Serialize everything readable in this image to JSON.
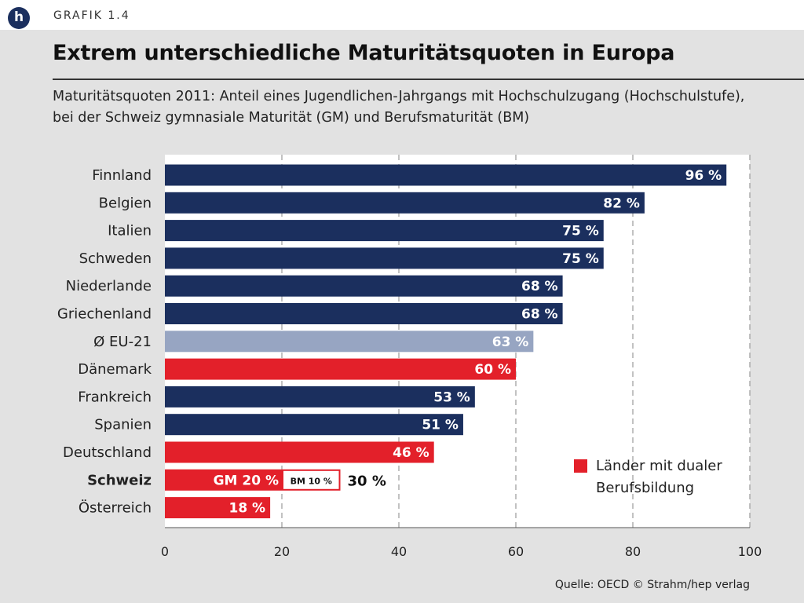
{
  "header": {
    "logo_letter": "h",
    "grafik_label": "GRAFIK 1.4"
  },
  "title": "Extrem unterschiedliche Maturitätsquoten in Europa",
  "subtitle": "Maturitätsquoten 2011: Anteil eines Jugendlichen-Jahrgangs mit Hochschulzugang (Hochschulstufe), bei der Schweiz gymnasiale Maturität (GM) und Berufsmaturität (BM)",
  "source": "Quelle: OECD  © Strahm/hep verlag",
  "legend": {
    "label": "Länder mit dualer Berufsbildung",
    "color": "#e3202a"
  },
  "colors": {
    "navy": "#1b2f5e",
    "red": "#e3202a",
    "average": "#97a5c2"
  },
  "chart_data": {
    "type": "bar",
    "orientation": "horizontal",
    "xlim": [
      0,
      100
    ],
    "xticks": [
      0,
      20,
      40,
      60,
      80,
      100
    ],
    "grid": "vertical dashed",
    "legend_position": "bottom-right",
    "categories": [
      "Finnland",
      "Belgien",
      "Italien",
      "Schweden",
      "Niederlande",
      "Griechenland",
      "Ø EU-21",
      "Dänemark",
      "Frankreich",
      "Spanien",
      "Deutschland",
      "Schweiz",
      "Österreich"
    ],
    "bars": [
      {
        "label": "Finnland",
        "value": 96,
        "value_label": "96 %",
        "color": "navy"
      },
      {
        "label": "Belgien",
        "value": 82,
        "value_label": "82 %",
        "color": "navy"
      },
      {
        "label": "Italien",
        "value": 75,
        "value_label": "75 %",
        "color": "navy"
      },
      {
        "label": "Schweden",
        "value": 75,
        "value_label": "75 %",
        "color": "navy"
      },
      {
        "label": "Niederlande",
        "value": 68,
        "value_label": "68 %",
        "color": "navy"
      },
      {
        "label": "Griechenland",
        "value": 68,
        "value_label": "68 %",
        "color": "navy"
      },
      {
        "label": "Ø EU-21",
        "value": 63,
        "value_label": "63 %",
        "color": "average"
      },
      {
        "label": "Dänemark",
        "value": 60,
        "value_label": "60 %",
        "color": "red"
      },
      {
        "label": "Frankreich",
        "value": 53,
        "value_label": "53 %",
        "color": "navy"
      },
      {
        "label": "Spanien",
        "value": 51,
        "value_label": "51 %",
        "color": "navy"
      },
      {
        "label": "Deutschland",
        "value": 46,
        "value_label": "46 %",
        "color": "red"
      },
      {
        "label": "Schweiz",
        "bold": true,
        "color": "red",
        "segments": [
          {
            "name": "GM",
            "value": 20,
            "value_label": "GM 20 %"
          },
          {
            "name": "BM",
            "value": 10,
            "value_label": "BM 10 %"
          }
        ],
        "total": 30,
        "total_label": "30 %"
      },
      {
        "label": "Österreich",
        "value": 18,
        "value_label": "18 %",
        "color": "red"
      }
    ]
  }
}
